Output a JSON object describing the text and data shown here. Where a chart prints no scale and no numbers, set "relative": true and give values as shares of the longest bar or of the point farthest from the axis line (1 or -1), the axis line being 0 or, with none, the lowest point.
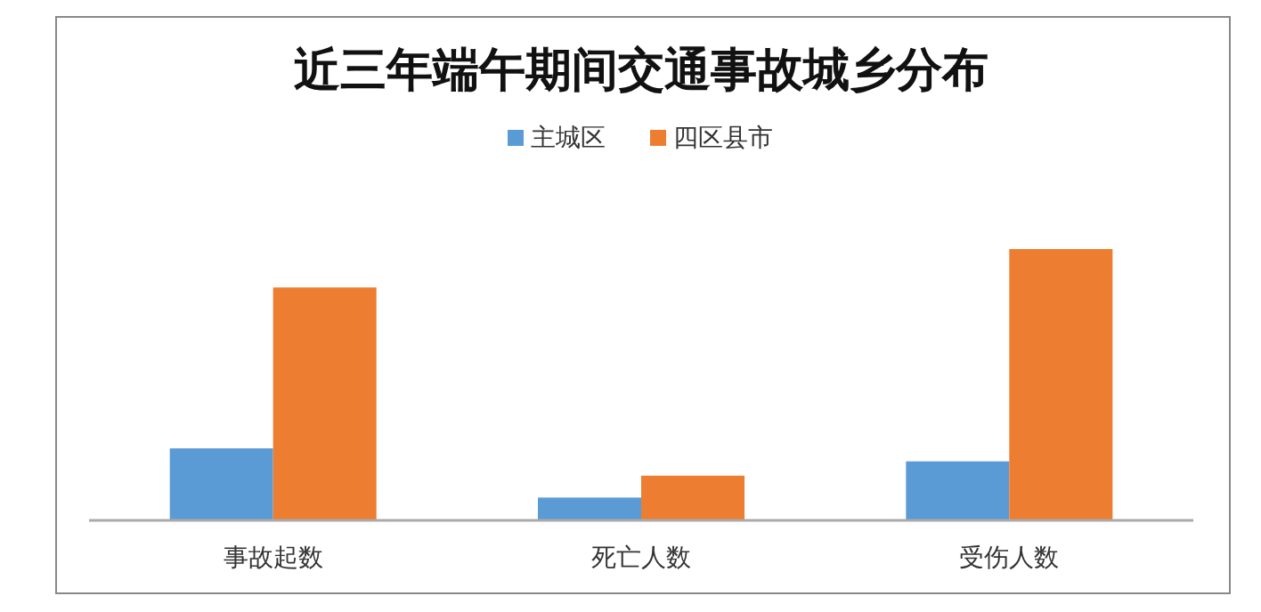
{
  "chart_data": {
    "type": "bar",
    "title": "近三年端午期间交通事故城乡分布",
    "relative": true,
    "legend": "top",
    "categories": [
      "事故起数",
      "死亡人数",
      "受伤人数"
    ],
    "series": [
      {
        "name": "主城区",
        "color": "#5b9bd5",
        "values": [
          0.263,
          0.081,
          0.215
        ]
      },
      {
        "name": "四区县市",
        "color": "#ed7d31",
        "values": [
          0.858,
          0.162,
          1
        ]
      }
    ]
  }
}
